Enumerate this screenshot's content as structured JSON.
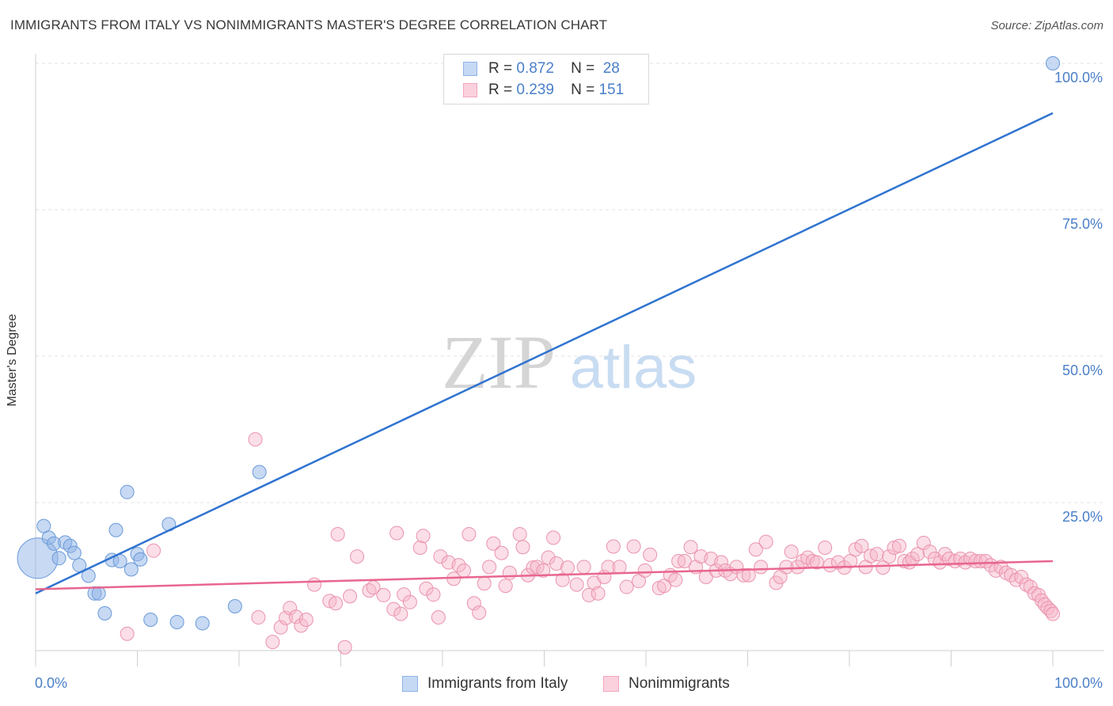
{
  "title": "IMMIGRANTS FROM ITALY VS NONIMMIGRANTS MASTER'S DEGREE CORRELATION CHART",
  "source": "Source: ZipAtlas.com",
  "watermark": {
    "zip": "ZIP",
    "atlas": "atlas"
  },
  "legend": {
    "rows": [
      {
        "r_label": "R =",
        "r_value": "0.872",
        "n_label": "N =",
        "n_value": "28",
        "color": "#8fb4e8"
      },
      {
        "r_label": "R =",
        "r_value": "0.239",
        "n_label": "N =",
        "n_value": "151",
        "color": "#f2a6bd"
      }
    ]
  },
  "bottom_legend": {
    "series_a": "Immigrants from Italy",
    "series_b": "Nonimmigrants"
  },
  "chart_data": {
    "type": "scatter",
    "title": "IMMIGRANTS FROM ITALY VS NONIMMIGRANTS MASTER'S DEGREE CORRELATION CHART",
    "xlabel": "",
    "ylabel": "Master's Degree",
    "xlim": [
      0,
      100
    ],
    "ylim": [
      0,
      100
    ],
    "x_tick_labels": [
      "0.0%",
      "100.0%"
    ],
    "y_tick_labels": [
      {
        "value": 25,
        "label": "25.0%"
      },
      {
        "value": 50,
        "label": "50.0%"
      },
      {
        "value": 75,
        "label": "75.0%"
      },
      {
        "value": 100,
        "label": "100.0%"
      }
    ],
    "series": [
      {
        "name": "Immigrants from Italy",
        "color": "#8fb4e8",
        "stroke": "#6a9ad8",
        "line_color": "#2f73d0",
        "trend": {
          "x": [
            0,
            100
          ],
          "y": [
            9.5,
            91.5
          ]
        },
        "points": [
          [
            0.2,
            15.5,
            3.0
          ],
          [
            0.8,
            21.0,
            1
          ],
          [
            1.3,
            19.0,
            1
          ],
          [
            1.8,
            18.0,
            1
          ],
          [
            2.3,
            15.5,
            1
          ],
          [
            2.9,
            18.2,
            1
          ],
          [
            3.4,
            17.6,
            1
          ],
          [
            3.8,
            16.4,
            1
          ],
          [
            4.3,
            14.3,
            1
          ],
          [
            5.2,
            12.5,
            1
          ],
          [
            5.8,
            9.5,
            1
          ],
          [
            6.2,
            9.5,
            1
          ],
          [
            6.8,
            6.1,
            1
          ],
          [
            7.5,
            15.2,
            1
          ],
          [
            7.9,
            20.3,
            1
          ],
          [
            8.3,
            15.0,
            1
          ],
          [
            9.0,
            26.8,
            1
          ],
          [
            9.4,
            13.6,
            1
          ],
          [
            10.0,
            16.2,
            1
          ],
          [
            10.3,
            15.3,
            1
          ],
          [
            11.3,
            5.0,
            1
          ],
          [
            13.1,
            21.3,
            1
          ],
          [
            13.9,
            4.6,
            1
          ],
          [
            16.4,
            4.4,
            1
          ],
          [
            19.6,
            7.3,
            1
          ],
          [
            22.0,
            30.2,
            1
          ],
          [
            100.0,
            100.0,
            1
          ]
        ]
      },
      {
        "name": "Nonimmigrants",
        "color": "#f6b6c9",
        "stroke": "#ea93ad",
        "line_color": "#e8668f",
        "trend": {
          "x": [
            0,
            100
          ],
          "y": [
            10.2,
            15.0
          ]
        },
        "points": [
          [
            9.0,
            2.6
          ],
          [
            11.6,
            16.8
          ],
          [
            21.6,
            35.8
          ],
          [
            21.9,
            5.4
          ],
          [
            23.3,
            1.2
          ],
          [
            24.1,
            3.7
          ],
          [
            24.6,
            5.3
          ],
          [
            25.0,
            7.0
          ],
          [
            25.6,
            5.5
          ],
          [
            26.1,
            4.0
          ],
          [
            26.6,
            5.0
          ],
          [
            27.4,
            11.0
          ],
          [
            28.9,
            8.2
          ],
          [
            29.5,
            7.8
          ],
          [
            29.7,
            19.6
          ],
          [
            30.4,
            0.3
          ],
          [
            30.9,
            9.0
          ],
          [
            31.6,
            15.8
          ],
          [
            32.8,
            10.0
          ],
          [
            33.2,
            10.5
          ],
          [
            34.2,
            9.2
          ],
          [
            35.2,
            6.8
          ],
          [
            35.5,
            19.8
          ],
          [
            35.9,
            6.0
          ],
          [
            36.2,
            9.3
          ],
          [
            36.8,
            8.0
          ],
          [
            37.8,
            17.3
          ],
          [
            38.1,
            19.3
          ],
          [
            38.4,
            10.3
          ],
          [
            39.1,
            9.3
          ],
          [
            39.6,
            5.4
          ],
          [
            39.8,
            15.8
          ],
          [
            40.6,
            14.8
          ],
          [
            41.1,
            12.0
          ],
          [
            41.6,
            14.3
          ],
          [
            42.1,
            13.4
          ],
          [
            42.6,
            19.6
          ],
          [
            43.1,
            7.8
          ],
          [
            43.6,
            6.2
          ],
          [
            44.1,
            11.2
          ],
          [
            44.6,
            14.0
          ],
          [
            45.0,
            18.0
          ],
          [
            45.8,
            16.4
          ],
          [
            46.2,
            10.8
          ],
          [
            46.6,
            13.0
          ],
          [
            47.6,
            19.6
          ],
          [
            47.9,
            17.4
          ],
          [
            48.4,
            12.6
          ],
          [
            48.9,
            13.9
          ],
          [
            49.3,
            14.0
          ],
          [
            49.9,
            13.4
          ],
          [
            50.4,
            15.6
          ],
          [
            50.9,
            19.0
          ],
          [
            51.2,
            14.6
          ],
          [
            51.8,
            11.8
          ],
          [
            52.3,
            13.9
          ],
          [
            53.2,
            11.0
          ],
          [
            53.9,
            14.0
          ],
          [
            54.4,
            9.2
          ],
          [
            54.9,
            11.3
          ],
          [
            55.3,
            9.5
          ],
          [
            55.9,
            12.3
          ],
          [
            56.3,
            14.0
          ],
          [
            56.8,
            17.5
          ],
          [
            57.4,
            14.0
          ],
          [
            58.1,
            10.6
          ],
          [
            58.8,
            17.5
          ],
          [
            59.3,
            11.6
          ],
          [
            59.9,
            13.4
          ],
          [
            60.4,
            16.1
          ],
          [
            61.3,
            10.4
          ],
          [
            61.8,
            10.8
          ],
          [
            62.4,
            12.6
          ],
          [
            62.9,
            11.8
          ],
          [
            63.2,
            15.0
          ],
          [
            63.8,
            15.0
          ],
          [
            64.4,
            17.4
          ],
          [
            64.9,
            14.0
          ],
          [
            65.4,
            15.8
          ],
          [
            65.9,
            12.3
          ],
          [
            66.4,
            15.4
          ],
          [
            66.9,
            13.4
          ],
          [
            67.4,
            14.8
          ],
          [
            67.8,
            13.4
          ],
          [
            68.3,
            12.8
          ],
          [
            68.9,
            14.0
          ],
          [
            69.6,
            12.6
          ],
          [
            70.1,
            12.6
          ],
          [
            70.8,
            17.0
          ],
          [
            71.3,
            14.0
          ],
          [
            71.8,
            18.3
          ],
          [
            72.8,
            11.3
          ],
          [
            73.2,
            12.3
          ],
          [
            73.8,
            14.0
          ],
          [
            74.3,
            16.6
          ],
          [
            74.9,
            14.0
          ],
          [
            75.4,
            15.0
          ],
          [
            75.9,
            15.6
          ],
          [
            76.4,
            15.0
          ],
          [
            76.8,
            14.8
          ],
          [
            77.6,
            17.3
          ],
          [
            78.1,
            14.3
          ],
          [
            78.9,
            14.8
          ],
          [
            79.5,
            13.9
          ],
          [
            80.1,
            15.0
          ],
          [
            80.6,
            17.0
          ],
          [
            81.2,
            17.6
          ],
          [
            81.6,
            14.0
          ],
          [
            82.1,
            15.9
          ],
          [
            82.7,
            16.2
          ],
          [
            83.3,
            13.9
          ],
          [
            83.9,
            15.8
          ],
          [
            84.4,
            17.3
          ],
          [
            84.9,
            17.6
          ],
          [
            85.4,
            15.0
          ],
          [
            85.9,
            14.8
          ],
          [
            86.2,
            15.4
          ],
          [
            86.7,
            16.2
          ],
          [
            87.3,
            18.1
          ],
          [
            87.9,
            16.6
          ],
          [
            88.4,
            15.4
          ],
          [
            88.9,
            14.8
          ],
          [
            89.4,
            16.2
          ],
          [
            89.8,
            15.4
          ],
          [
            90.4,
            15.0
          ],
          [
            90.9,
            15.4
          ],
          [
            91.4,
            14.8
          ],
          [
            91.9,
            15.4
          ],
          [
            92.4,
            15.0
          ],
          [
            92.9,
            15.0
          ],
          [
            93.4,
            15.0
          ],
          [
            93.9,
            14.3
          ],
          [
            94.4,
            13.4
          ],
          [
            94.9,
            14.0
          ],
          [
            95.4,
            13.0
          ],
          [
            95.9,
            12.6
          ],
          [
            96.4,
            11.8
          ],
          [
            96.9,
            12.3
          ],
          [
            97.4,
            11.0
          ],
          [
            97.8,
            10.6
          ],
          [
            98.2,
            9.5
          ],
          [
            98.6,
            9.2
          ],
          [
            98.9,
            8.3
          ],
          [
            99.2,
            7.6
          ],
          [
            99.5,
            7.0
          ],
          [
            99.8,
            6.5
          ],
          [
            100.0,
            6.0
          ]
        ]
      }
    ]
  }
}
